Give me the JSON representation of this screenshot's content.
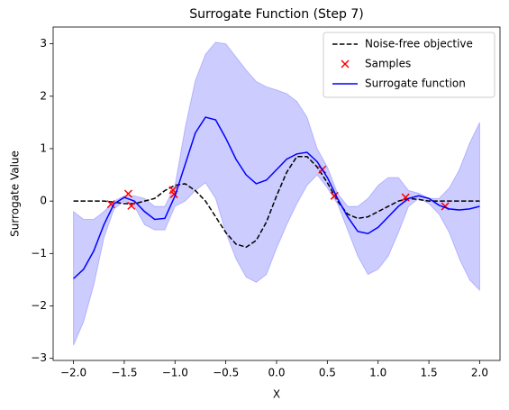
{
  "chart_data": {
    "type": "line",
    "title": "Surrogate Function (Step 7)",
    "x_label": "X",
    "y_label": "Surrogate Value",
    "x": [
      -2.0,
      -1.9,
      -1.8,
      -1.7,
      -1.6,
      -1.5,
      -1.4,
      -1.3,
      -1.2,
      -1.1,
      -1.0,
      -0.9,
      -0.8,
      -0.7,
      -0.6,
      -0.5,
      -0.4,
      -0.3,
      -0.2,
      -0.1,
      0.0,
      0.1,
      0.2,
      0.3,
      0.4,
      0.5,
      0.6,
      0.7,
      0.8,
      0.9,
      1.0,
      1.1,
      1.2,
      1.3,
      1.4,
      1.5,
      1.6,
      1.7,
      1.8,
      1.9,
      2.0
    ],
    "band": {
      "color": "#0000ff",
      "upper": [
        -0.2,
        -0.35,
        -0.35,
        -0.2,
        0.0,
        0.1,
        0.1,
        0.05,
        -0.1,
        -0.1,
        0.3,
        1.4,
        2.3,
        2.8,
        3.03,
        3.0,
        2.75,
        2.5,
        2.28,
        2.18,
        2.12,
        2.05,
        1.9,
        1.6,
        1.0,
        0.65,
        0.15,
        -0.1,
        -0.1,
        0.05,
        0.3,
        0.45,
        0.45,
        0.2,
        0.15,
        0.05,
        0.05,
        0.25,
        0.6,
        1.1,
        1.5
      ],
      "lower": [
        -2.75,
        -2.3,
        -1.6,
        -0.7,
        -0.15,
        0.0,
        -0.1,
        -0.45,
        -0.55,
        -0.55,
        -0.1,
        0.0,
        0.2,
        0.35,
        0.05,
        -0.6,
        -1.1,
        -1.45,
        -1.55,
        -1.4,
        -0.9,
        -0.45,
        -0.05,
        0.3,
        0.5,
        0.25,
        -0.05,
        -0.55,
        -1.05,
        -1.4,
        -1.3,
        -1.05,
        -0.6,
        -0.1,
        0.05,
        -0.05,
        -0.25,
        -0.6,
        -1.1,
        -1.5,
        -1.7
      ]
    },
    "series": [
      {
        "name": "Noise-free objective",
        "color": "#000000",
        "dash": true,
        "values": [
          0,
          0,
          0,
          0,
          -0.02,
          -0.05,
          -0.05,
          0.0,
          0.05,
          0.2,
          0.3,
          0.33,
          0.2,
          0.0,
          -0.3,
          -0.6,
          -0.82,
          -0.88,
          -0.75,
          -0.4,
          0.1,
          0.55,
          0.85,
          0.85,
          0.65,
          0.35,
          0.0,
          -0.25,
          -0.33,
          -0.3,
          -0.2,
          -0.1,
          0.0,
          0.05,
          0.03,
          0.0,
          0,
          0,
          0,
          0,
          0
        ]
      },
      {
        "name": "Samples",
        "type": "scatter",
        "color": "#ff0000",
        "x": [
          -1.63,
          -1.46,
          -1.43,
          -1.02,
          -1.01,
          0.45,
          0.57,
          1.27,
          1.66
        ],
        "values": [
          -0.06,
          0.14,
          -0.09,
          0.21,
          0.13,
          0.6,
          0.1,
          0.07,
          -0.1
        ]
      },
      {
        "name": "Surrogate function",
        "color": "#0000ff",
        "values": [
          -1.48,
          -1.3,
          -0.95,
          -0.45,
          -0.05,
          0.07,
          0.0,
          -0.2,
          -0.35,
          -0.33,
          0.1,
          0.7,
          1.3,
          1.6,
          1.55,
          1.2,
          0.8,
          0.5,
          0.33,
          0.4,
          0.6,
          0.8,
          0.9,
          0.93,
          0.75,
          0.45,
          0.05,
          -0.3,
          -0.58,
          -0.62,
          -0.5,
          -0.3,
          -0.1,
          0.05,
          0.1,
          0.05,
          -0.08,
          -0.15,
          -0.17,
          -0.15,
          -0.1
        ]
      }
    ],
    "xlim": [
      -2.2,
      2.2
    ],
    "ylim": [
      -3.04,
      3.32
    ],
    "xticks": [
      {
        "value": -2.0,
        "label": "−2.0"
      },
      {
        "value": -1.5,
        "label": "−1.5"
      },
      {
        "value": -1.0,
        "label": "−1.0"
      },
      {
        "value": -0.5,
        "label": "−0.5"
      },
      {
        "value": 0.0,
        "label": "0.0"
      },
      {
        "value": 0.5,
        "label": "0.5"
      },
      {
        "value": 1.0,
        "label": "1.0"
      },
      {
        "value": 1.5,
        "label": "1.5"
      },
      {
        "value": 2.0,
        "label": "2.0"
      }
    ],
    "yticks": [
      {
        "value": -3,
        "label": "−3"
      },
      {
        "value": -2,
        "label": "−2"
      },
      {
        "value": -1,
        "label": "−1"
      },
      0,
      1,
      2,
      3
    ],
    "legend": "upper right"
  }
}
